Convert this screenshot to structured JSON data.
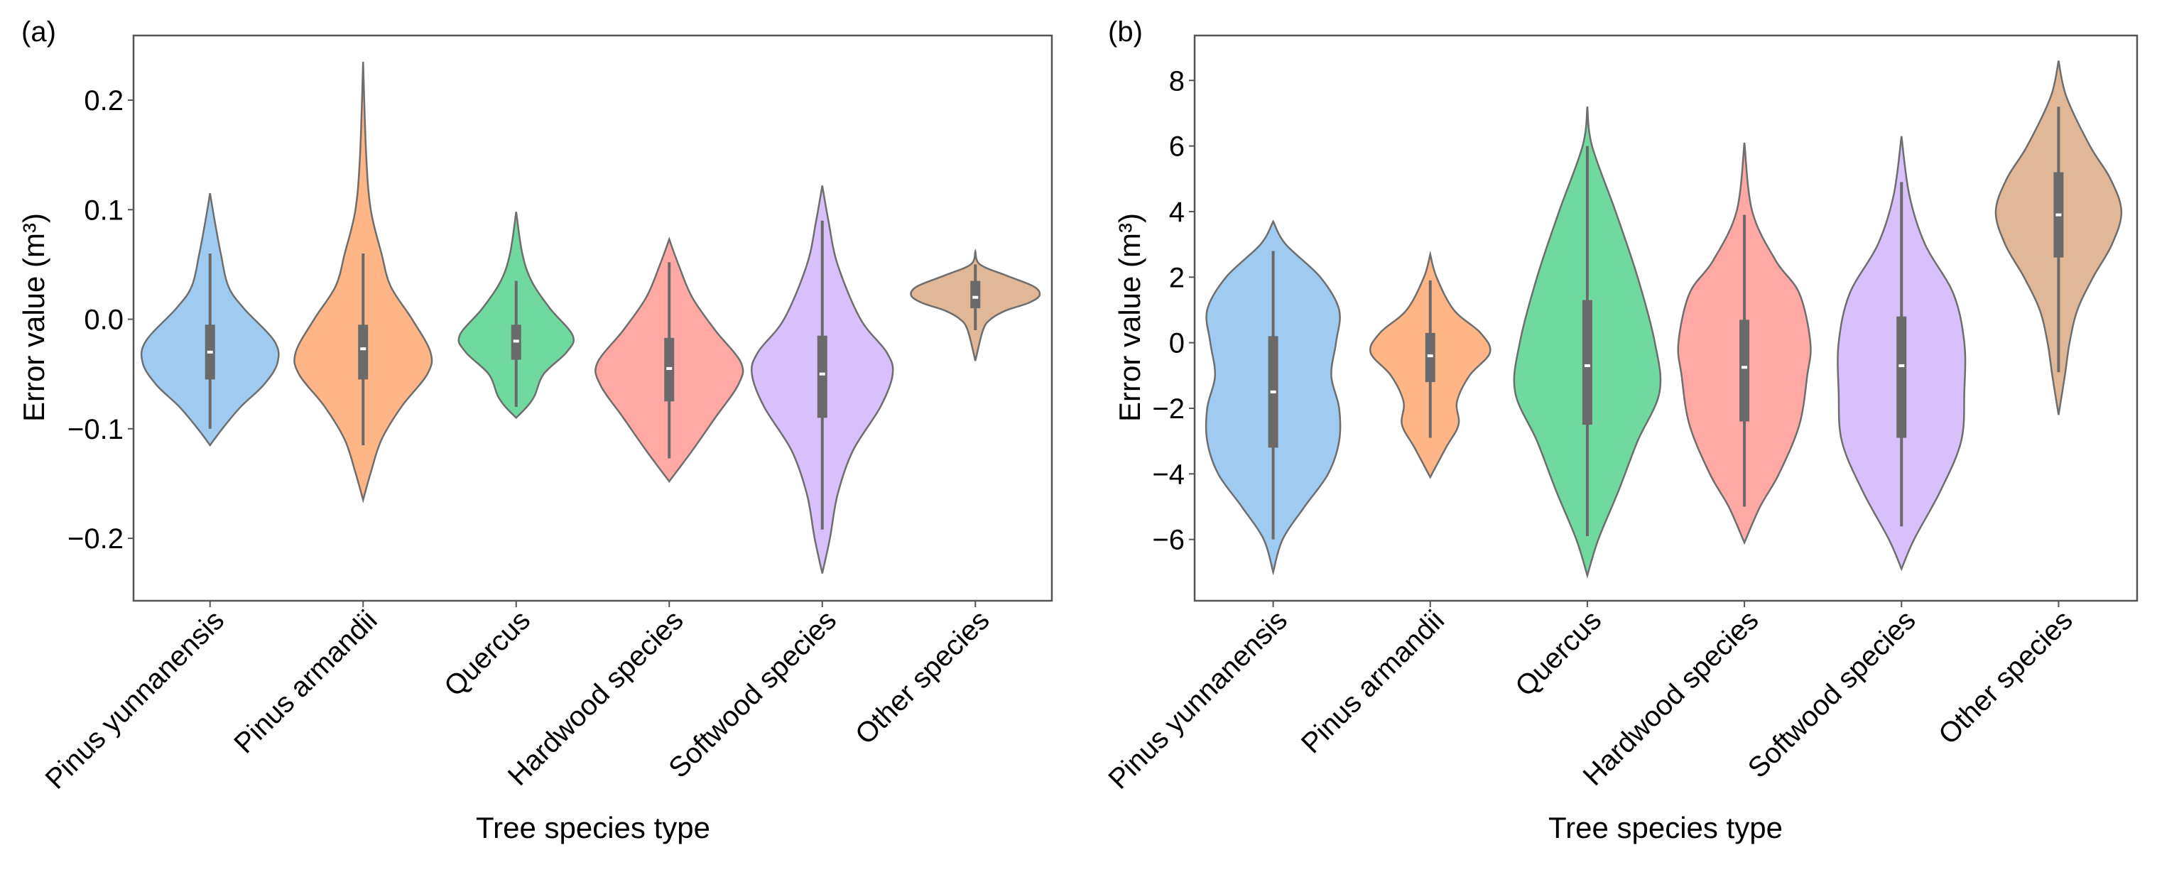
{
  "chart_data": [
    {
      "type": "violin",
      "panel_label": "(a)",
      "xlabel": "Tree species type",
      "ylabel": "Error value (m³)",
      "ylim": [
        -0.257,
        0.259
      ],
      "yticks": [
        -0.2,
        -0.1,
        0.0,
        0.1,
        0.2
      ],
      "ytick_labels": [
        "−0.2",
        "−0.1",
        "0.0",
        "0.1",
        "0.2"
      ],
      "categories": [
        "Pinus yunnanensis",
        "Pinus armandii",
        "Quercus",
        "Hardwood species",
        "Softwood species",
        "Other species"
      ],
      "colors": [
        "#9ecbef",
        "#ffb585",
        "#6fd9a0",
        "#ffa8a4",
        "#d7c0fb",
        "#e0b898"
      ],
      "violins": [
        {
          "min": -0.115,
          "max": 0.115,
          "q1": -0.055,
          "median": -0.03,
          "q3": -0.005,
          "whisker_low": -0.1,
          "whisker_high": 0.06,
          "density": [
            [
              0.115,
              0
            ],
            [
              0.09,
              0.03
            ],
            [
              0.06,
              0.07
            ],
            [
              0.03,
              0.12
            ],
            [
              0.01,
              0.22
            ],
            [
              -0.02,
              0.42
            ],
            [
              -0.04,
              0.44
            ],
            [
              -0.06,
              0.35
            ],
            [
              -0.08,
              0.2
            ],
            [
              -0.1,
              0.08
            ],
            [
              -0.115,
              0
            ]
          ]
        },
        {
          "min": -0.165,
          "max": 0.235,
          "q1": -0.055,
          "median": -0.027,
          "q3": -0.005,
          "whisker_low": -0.115,
          "whisker_high": 0.06,
          "density": [
            [
              0.235,
              0
            ],
            [
              0.15,
              0.02
            ],
            [
              0.1,
              0.05
            ],
            [
              0.06,
              0.12
            ],
            [
              0.03,
              0.18
            ],
            [
              0.0,
              0.32
            ],
            [
              -0.03,
              0.44
            ],
            [
              -0.05,
              0.42
            ],
            [
              -0.08,
              0.25
            ],
            [
              -0.11,
              0.12
            ],
            [
              -0.14,
              0.05
            ],
            [
              -0.165,
              0
            ]
          ]
        },
        {
          "min": -0.09,
          "max": 0.098,
          "q1": -0.037,
          "median": -0.02,
          "q3": -0.005,
          "whisker_low": -0.08,
          "whisker_high": 0.035,
          "density": [
            [
              0.098,
              0
            ],
            [
              0.06,
              0.04
            ],
            [
              0.035,
              0.1
            ],
            [
              0.01,
              0.22
            ],
            [
              -0.015,
              0.37
            ],
            [
              -0.03,
              0.33
            ],
            [
              -0.05,
              0.18
            ],
            [
              -0.07,
              0.12
            ],
            [
              -0.08,
              0.07
            ],
            [
              -0.09,
              0
            ]
          ]
        },
        {
          "min": -0.148,
          "max": 0.073,
          "q1": -0.075,
          "median": -0.045,
          "q3": -0.017,
          "whisker_low": -0.127,
          "whisker_high": 0.052,
          "density": [
            [
              0.073,
              0
            ],
            [
              0.05,
              0.06
            ],
            [
              0.02,
              0.15
            ],
            [
              -0.01,
              0.3
            ],
            [
              -0.04,
              0.47
            ],
            [
              -0.06,
              0.45
            ],
            [
              -0.09,
              0.3
            ],
            [
              -0.12,
              0.15
            ],
            [
              -0.148,
              0
            ]
          ]
        },
        {
          "min": -0.232,
          "max": 0.122,
          "q1": -0.09,
          "median": -0.05,
          "q3": -0.015,
          "whisker_low": -0.192,
          "whisker_high": 0.09,
          "density": [
            [
              0.122,
              0
            ],
            [
              0.09,
              0.04
            ],
            [
              0.05,
              0.1
            ],
            [
              0.0,
              0.25
            ],
            [
              -0.03,
              0.42
            ],
            [
              -0.05,
              0.46
            ],
            [
              -0.08,
              0.38
            ],
            [
              -0.12,
              0.2
            ],
            [
              -0.16,
              0.1
            ],
            [
              -0.2,
              0.05
            ],
            [
              -0.232,
              0
            ]
          ]
        },
        {
          "min": -0.038,
          "max": 0.062,
          "q1": 0.01,
          "median": 0.02,
          "q3": 0.035,
          "whisker_low": -0.01,
          "whisker_high": 0.05,
          "density": [
            [
              0.062,
              0
            ],
            [
              0.05,
              0.03
            ],
            [
              0.04,
              0.2
            ],
            [
              0.03,
              0.38
            ],
            [
              0.022,
              0.42
            ],
            [
              0.015,
              0.35
            ],
            [
              0.008,
              0.2
            ],
            [
              0.0,
              0.1
            ],
            [
              -0.01,
              0.05
            ],
            [
              -0.038,
              0
            ]
          ]
        }
      ]
    },
    {
      "type": "violin",
      "panel_label": "(b)",
      "xlabel": "Tree species type",
      "ylabel": "Error value (m³)",
      "ylim": [
        -7.87,
        9.37
      ],
      "yticks": [
        -6,
        -4,
        -2,
        0,
        2,
        4,
        6,
        8
      ],
      "ytick_labels": [
        "−6",
        "−4",
        "−2",
        "0",
        "2",
        "4",
        "6",
        "8"
      ],
      "categories": [
        "Pinus yunnanensis",
        "Pinus armandii",
        "Quercus",
        "Hardwood species",
        "Softwood species",
        "Other species"
      ],
      "colors": [
        "#9ecbef",
        "#ffb585",
        "#6fd9a0",
        "#ffa8a4",
        "#d7c0fb",
        "#e0b898"
      ],
      "violins": [
        {
          "min": -7,
          "max": 3.7,
          "q1": -3.2,
          "median": -1.5,
          "q3": 0.2,
          "whisker_low": -6,
          "whisker_high": 2.8,
          "density": [
            [
              3.7,
              0
            ],
            [
              3,
              0.08
            ],
            [
              2,
              0.3
            ],
            [
              1,
              0.42
            ],
            [
              0,
              0.4
            ],
            [
              -1,
              0.37
            ],
            [
              -2,
              0.42
            ],
            [
              -3,
              0.42
            ],
            [
              -4,
              0.35
            ],
            [
              -5,
              0.2
            ],
            [
              -6,
              0.06
            ],
            [
              -7,
              0
            ]
          ]
        },
        {
          "min": -4.1,
          "max": 2.7,
          "q1": -1.2,
          "median": -0.4,
          "q3": 0.3,
          "whisker_low": -2.9,
          "whisker_high": 1.9,
          "density": [
            [
              2.7,
              0
            ],
            [
              2,
              0.04
            ],
            [
              1,
              0.15
            ],
            [
              0.3,
              0.32
            ],
            [
              -0.3,
              0.38
            ],
            [
              -1,
              0.25
            ],
            [
              -1.8,
              0.17
            ],
            [
              -2.5,
              0.18
            ],
            [
              -3.2,
              0.1
            ],
            [
              -4.1,
              0
            ]
          ]
        },
        {
          "min": -7.1,
          "max": 7.2,
          "q1": -2.5,
          "median": -0.7,
          "q3": 1.3,
          "whisker_low": -5.9,
          "whisker_high": 6.0,
          "density": [
            [
              7.2,
              0
            ],
            [
              6,
              0.03
            ],
            [
              4,
              0.18
            ],
            [
              2,
              0.32
            ],
            [
              0,
              0.43
            ],
            [
              -1.5,
              0.46
            ],
            [
              -3,
              0.32
            ],
            [
              -4.5,
              0.2
            ],
            [
              -6,
              0.07
            ],
            [
              -7.1,
              0
            ]
          ]
        },
        {
          "min": -6.1,
          "max": 6.1,
          "q1": -2.4,
          "median": -0.75,
          "q3": 0.7,
          "whisker_low": -5.0,
          "whisker_high": 3.9,
          "density": [
            [
              6.1,
              0
            ],
            [
              4,
              0.05
            ],
            [
              2.5,
              0.2
            ],
            [
              1.5,
              0.35
            ],
            [
              0,
              0.42
            ],
            [
              -1,
              0.4
            ],
            [
              -2.5,
              0.35
            ],
            [
              -4,
              0.22
            ],
            [
              -5,
              0.1
            ],
            [
              -6.1,
              0
            ]
          ]
        },
        {
          "min": -6.9,
          "max": 6.3,
          "q1": -2.9,
          "median": -0.7,
          "q3": 0.8,
          "whisker_low": -5.6,
          "whisker_high": 4.9,
          "density": [
            [
              6.3,
              0
            ],
            [
              4.5,
              0.05
            ],
            [
              3,
              0.15
            ],
            [
              1.5,
              0.33
            ],
            [
              0,
              0.4
            ],
            [
              -1.5,
              0.4
            ],
            [
              -3,
              0.38
            ],
            [
              -4.5,
              0.25
            ],
            [
              -6,
              0.08
            ],
            [
              -6.9,
              0
            ]
          ]
        },
        {
          "min": -2.2,
          "max": 8.6,
          "q1": 2.6,
          "median": 3.9,
          "q3": 5.2,
          "whisker_low": -0.9,
          "whisker_high": 7.2,
          "density": [
            [
              8.6,
              0
            ],
            [
              7.5,
              0.05
            ],
            [
              6,
              0.2
            ],
            [
              5,
              0.33
            ],
            [
              4,
              0.4
            ],
            [
              3,
              0.34
            ],
            [
              2,
              0.22
            ],
            [
              1,
              0.12
            ],
            [
              0,
              0.07
            ],
            [
              -1,
              0.04
            ],
            [
              -2.2,
              0
            ]
          ]
        }
      ]
    }
  ]
}
